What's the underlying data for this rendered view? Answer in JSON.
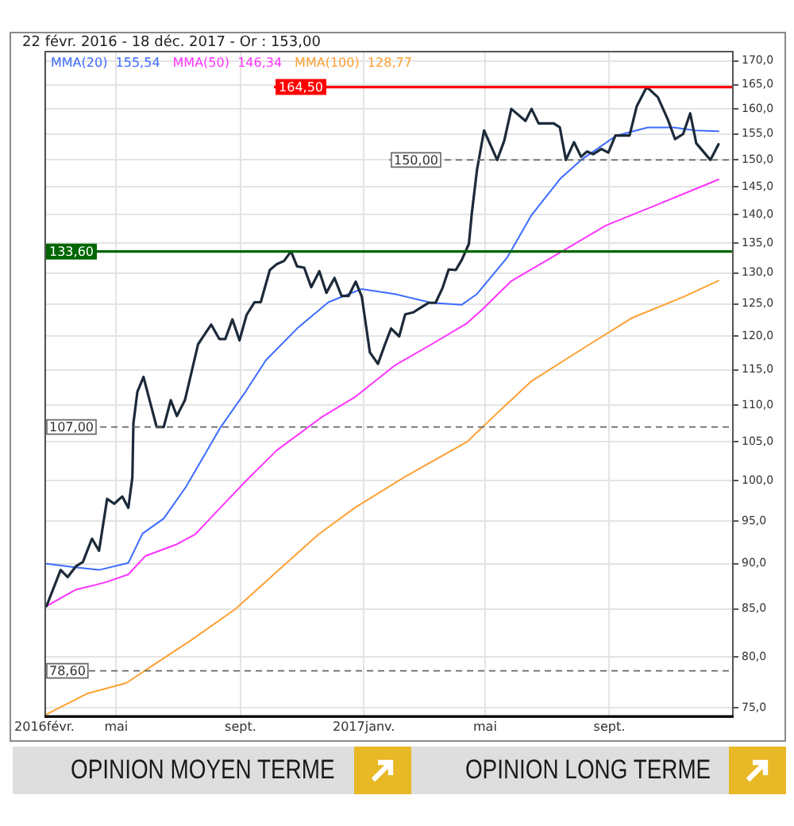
{
  "chart_data": {
    "type": "line",
    "title": "22 févr. 2016 - 18 déc. 2017 - Or : 153,00",
    "x": [
      "2016-02-22",
      "2016-03-07",
      "2016-03-14",
      "2016-03-22",
      "2016-03-29",
      "2016-04-07",
      "2016-04-14",
      "2016-04-22",
      "2016-04-29",
      "2016-05-07",
      "2016-05-13",
      "2016-05-17",
      "2016-05-18",
      "2016-05-22",
      "2016-05-28",
      "2016-06-10",
      "2016-06-17",
      "2016-06-24",
      "2016-06-30",
      "2016-07-08",
      "2016-07-21",
      "2016-08-03",
      "2016-08-11",
      "2016-08-17",
      "2016-08-24",
      "2016-08-31",
      "2016-09-07",
      "2016-09-15",
      "2016-09-21",
      "2016-09-30",
      "2016-10-07",
      "2016-10-14",
      "2016-10-21",
      "2016-10-27",
      "2016-11-03",
      "2016-11-10",
      "2016-11-18",
      "2016-11-25",
      "2016-12-03",
      "2016-12-10",
      "2016-12-17",
      "2016-12-24",
      "2016-12-30",
      "2017-01-07",
      "2017-01-15",
      "2017-01-22",
      "2017-01-28",
      "2017-02-05",
      "2017-02-11",
      "2017-02-19",
      "2017-02-25",
      "2017-03-06",
      "2017-03-13",
      "2017-03-20",
      "2017-03-26",
      "2017-04-02",
      "2017-04-08",
      "2017-04-15",
      "2017-04-18",
      "2017-04-23",
      "2017-04-30",
      "2017-05-13",
      "2017-05-20",
      "2017-05-27",
      "2017-06-10",
      "2017-06-16",
      "2017-06-23",
      "2017-07-08",
      "2017-07-14",
      "2017-07-20",
      "2017-07-28",
      "2017-08-04",
      "2017-08-10",
      "2017-08-16",
      "2017-08-24",
      "2017-08-31",
      "2017-09-07",
      "2017-09-21",
      "2017-09-28",
      "2017-10-08",
      "2017-10-19",
      "2017-10-29",
      "2017-11-05",
      "2017-11-13",
      "2017-11-20",
      "2017-11-26",
      "2017-12-10",
      "2017-12-18"
    ],
    "series": [
      {
        "color": "#1c2a3a",
        "values": [
          85.3,
          89.3,
          88.5,
          89.7,
          90.2,
          92.9,
          91.5,
          97.7,
          97.1,
          98.0,
          96.6,
          100.4,
          107.5,
          111.9,
          114.0,
          107,
          107,
          110.7,
          108.5,
          110.7,
          118.8,
          121.8,
          119.6,
          119.6,
          122.6,
          119.4,
          123.3,
          125.3,
          125.3,
          130.5,
          131.5,
          132.0,
          133.6,
          131.1,
          130.9,
          127.7,
          130.3,
          126.8,
          129.2,
          126.3,
          126.3,
          128.6,
          126.2,
          117.6,
          115.9,
          118.8,
          121.2,
          120.0,
          123.4,
          123.7,
          124.3,
          125.2,
          125.2,
          127.6,
          130.6,
          130.5,
          132.2,
          134.9,
          140.4,
          148.1,
          155.7,
          150,
          153.7,
          160.0,
          157.6,
          160.0,
          157.1,
          157.1,
          156.3,
          150,
          153.4,
          150.6,
          151.6,
          151.1,
          152.1,
          151.4,
          154.7,
          154.7,
          160.5,
          164.5,
          162.4,
          157.8,
          154.0,
          155.0,
          159.1,
          153.2,
          150,
          153.0
        ]
      },
      {
        "name": "MMA(20)  155,54",
        "color": "#3d6bff",
        "x": [
          "2016-02-22",
          "2016-03-21",
          "2016-04-14",
          "2016-05-13",
          "2016-05-27",
          "2016-06-17",
          "2016-07-09",
          "2016-08-12",
          "2016-09-06",
          "2016-09-26",
          "2016-10-27",
          "2016-11-27",
          "2016-12-17",
          "2016-12-30",
          "2017-02-01",
          "2017-03-09",
          "2017-04-08",
          "2017-04-23",
          "2017-05-23",
          "2017-06-16",
          "2017-07-15",
          "2017-08-04",
          "2017-09-08",
          "2017-10-09",
          "2017-11-04",
          "2017-11-25",
          "2017-12-18"
        ],
        "values": [
          90.0,
          89.6,
          89.3,
          90.1,
          93.5,
          95.3,
          99.2,
          106.9,
          111.9,
          116.4,
          121.2,
          125.3,
          126.6,
          127.4,
          126.6,
          125.2,
          124.9,
          126.6,
          132.6,
          139.9,
          146.6,
          150.0,
          154.7,
          156.3,
          156.3,
          155.7,
          155.54
        ]
      },
      {
        "name": "MMA(50)  146,34",
        "color": "#ff33ff",
        "x": [
          "2016-02-22",
          "2016-03-22",
          "2016-04-20",
          "2016-05-13",
          "2016-05-30",
          "2016-06-29",
          "2016-07-18",
          "2016-08-12",
          "2016-09-06",
          "2016-10-07",
          "2016-11-22",
          "2016-12-23",
          "2017-02-01",
          "2017-03-09",
          "2017-04-13",
          "2017-04-28",
          "2017-05-27",
          "2017-07-11",
          "2017-08-29",
          "2017-10-19",
          "2017-12-18"
        ],
        "values": [
          85.3,
          87.1,
          87.9,
          88.8,
          90.9,
          92.2,
          93.4,
          96.6,
          99.9,
          103.9,
          108.5,
          111.1,
          115.7,
          118.8,
          122.0,
          124.1,
          128.7,
          133.1,
          138.1,
          141.8,
          146.34
        ]
      },
      {
        "name": "MMA(100)  128,77",
        "color": "#ffa033",
        "x": [
          "2016-02-22",
          "2016-04-03",
          "2016-05-11",
          "2016-06-04",
          "2016-07-14",
          "2016-08-27",
          "2016-10-07",
          "2016-11-17",
          "2016-12-23",
          "2017-02-11",
          "2017-04-13",
          "2017-05-13",
          "2017-06-16",
          "2017-08-04",
          "2017-09-23",
          "2017-11-14",
          "2017-12-18"
        ],
        "values": [
          74.4,
          76.4,
          77.4,
          79.0,
          81.7,
          85.0,
          89.1,
          93.4,
          96.6,
          100.5,
          105.0,
          108.9,
          113.4,
          118.0,
          122.8,
          126.2,
          128.77
        ]
      }
    ],
    "xlim": [
      "2016-02-20",
      "2018-01-02"
    ],
    "xticks": [
      {
        "value": "2016-02-20",
        "label": "2016févr."
      },
      {
        "value": "2016-05-01",
        "label": "mai"
      },
      {
        "value": "2016-09-01",
        "label": "sept."
      },
      {
        "value": "2017-01-01",
        "label": "2017janv."
      },
      {
        "value": "2017-05-01",
        "label": "mai"
      },
      {
        "value": "2017-09-01",
        "label": "sept."
      }
    ],
    "ylim": [
      74.2,
      172.2
    ],
    "yticks": [
      {
        "value": 75,
        "label": "75,0"
      },
      {
        "value": 80,
        "label": "80,0"
      },
      {
        "value": 85,
        "label": "85,0"
      },
      {
        "value": 90,
        "label": "90,0"
      },
      {
        "value": 95,
        "label": "95,0"
      },
      {
        "value": 100,
        "label": "100,0"
      },
      {
        "value": 105,
        "label": "105,0"
      },
      {
        "value": 110,
        "label": "110,0"
      },
      {
        "value": 115,
        "label": "115,0"
      },
      {
        "value": 120,
        "label": "120,0"
      },
      {
        "value": 125,
        "label": "125,0"
      },
      {
        "value": 130,
        "label": "130,0"
      },
      {
        "value": 135,
        "label": "135,0"
      },
      {
        "value": 140,
        "label": "140,0"
      },
      {
        "value": 145,
        "label": "145,0"
      },
      {
        "value": 150,
        "label": "150,0"
      },
      {
        "value": 155,
        "label": "155,0"
      },
      {
        "value": 160,
        "label": "160,0"
      },
      {
        "value": 165,
        "label": "165,0"
      },
      {
        "value": 170,
        "label": "170,0"
      }
    ],
    "log": "y",
    "grid": true,
    "legend": "top left",
    "marker": "none",
    "ref_lines": [
      {
        "axis": "y",
        "value": 164.5,
        "label": "164,50",
        "color": "#ff0000"
      },
      {
        "axis": "y",
        "value": 133.6,
        "label": "133,60",
        "color": "#006600"
      },
      {
        "axis": "y",
        "value": 150,
        "label": "150,00",
        "color": "#666666",
        "line_style": "dashed"
      },
      {
        "axis": "y",
        "value": 107,
        "label": "107,00",
        "color": "#666666",
        "line_style": "dashed"
      },
      {
        "axis": "y",
        "value": 78.6,
        "label": "78,60",
        "color": "#666666",
        "line_style": "dashed"
      }
    ],
    "annotations": [
      "OPINION MOYEN TERME",
      "OPINION LONG TERME"
    ]
  }
}
